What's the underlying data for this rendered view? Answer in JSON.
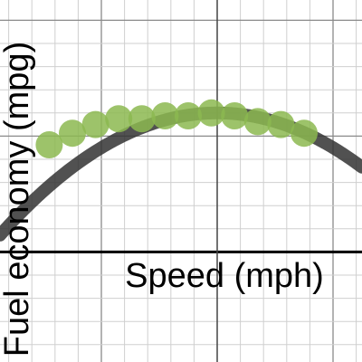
{
  "chart_data": {
    "type": "scatter",
    "title": "",
    "xlabel": "Speed (mph)",
    "ylabel": "Fuel economy (mpg)",
    "grid": true,
    "xlim": [
      -9.375,
      6.25
    ],
    "ylim": [
      -4.75,
      10.875
    ],
    "series": [
      {
        "kind": "points",
        "x": [
          -7.25,
          -6.25,
          -5.25,
          -4.25,
          -3.25,
          -2.25,
          -1.25,
          -0.25,
          0.75,
          1.75,
          2.75,
          3.75
        ],
        "y": [
          4.625,
          5.125,
          5.5,
          5.75,
          5.75,
          5.875,
          5.875,
          6.0,
          5.875,
          5.625,
          5.5,
          5.125
        ],
        "color": "#8cb850"
      },
      {
        "kind": "fit",
        "formula": "y = 6 - 0.06*x^2",
        "color": "#333333"
      }
    ]
  }
}
